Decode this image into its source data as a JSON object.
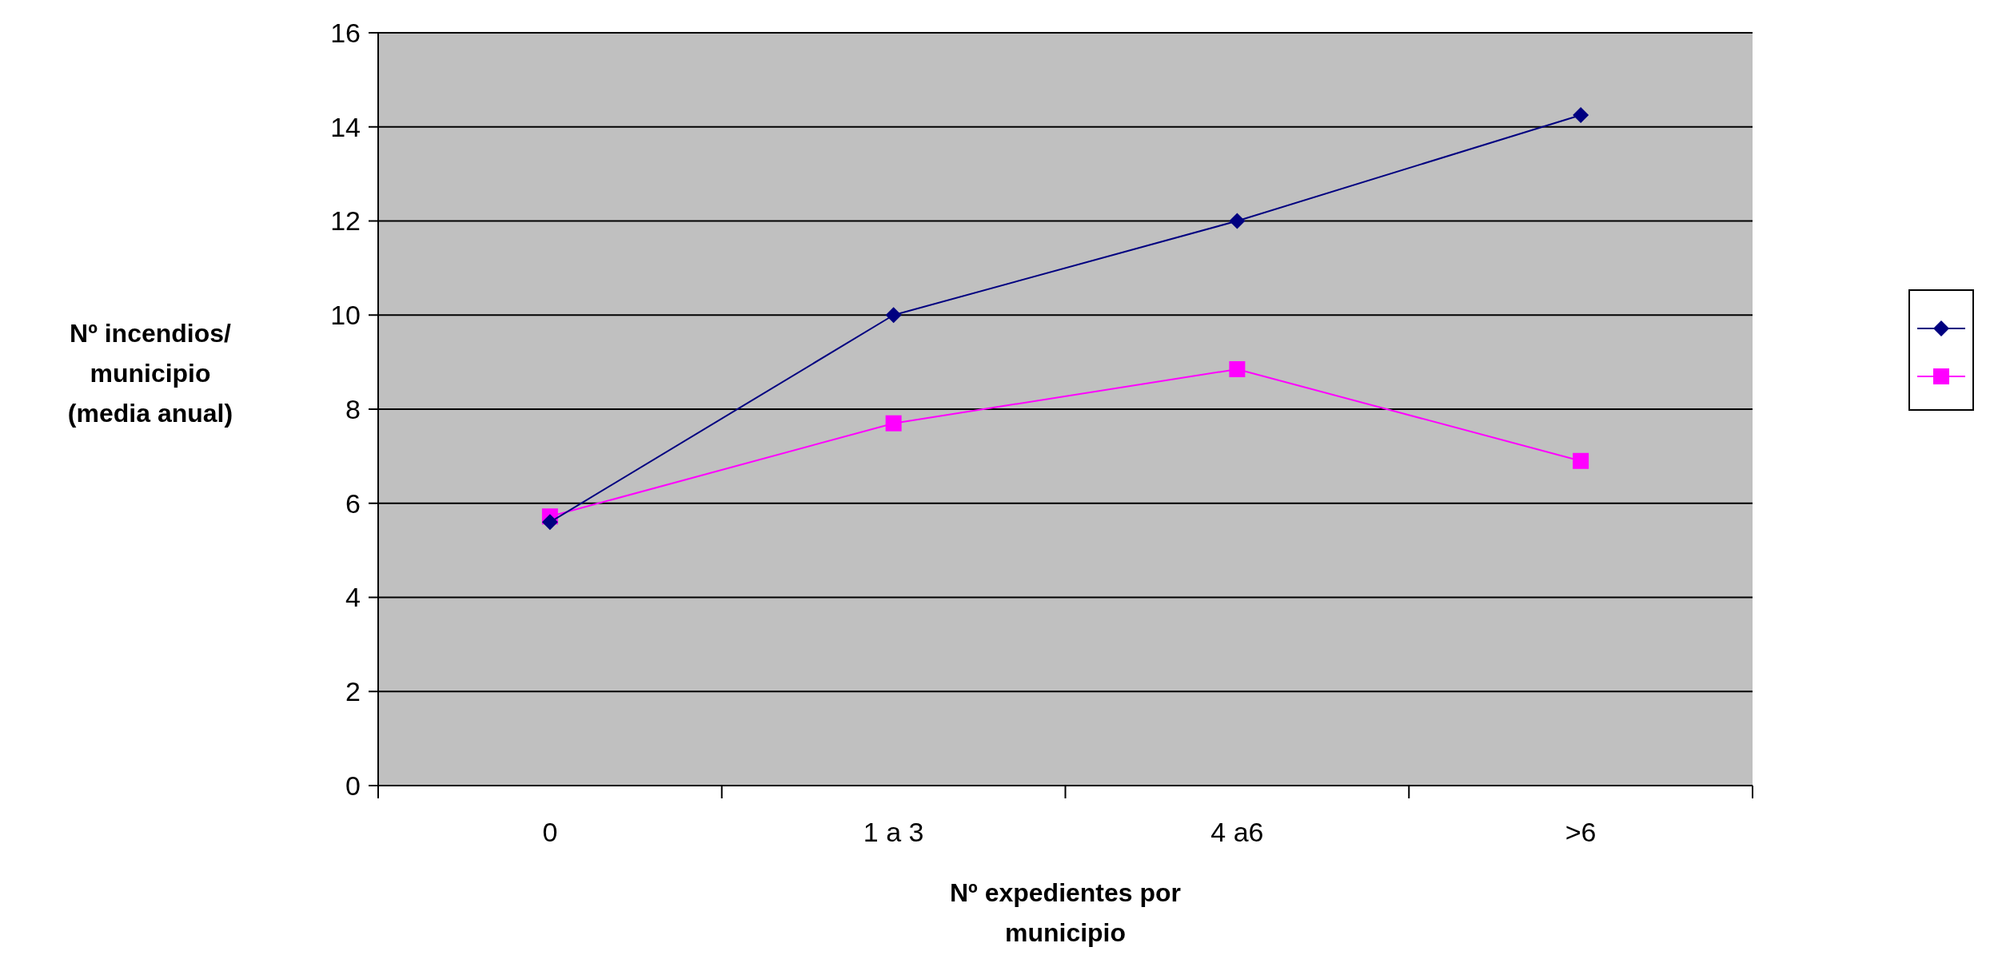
{
  "chart_data": {
    "type": "line",
    "xlabel": "Nº expedientes por\nmunicipio",
    "ylabel": "Nº incendios/\nmunicipio\n(media anual)",
    "categories": [
      "0",
      "1 a 3",
      "4 a6",
      ">6"
    ],
    "series": [
      {
        "color": "#000080",
        "marker": "diamond",
        "values": [
          5.6,
          10.0,
          12.0,
          14.25
        ]
      },
      {
        "color": "#ff00ff",
        "marker": "square",
        "values": [
          5.72,
          7.7,
          8.85,
          6.9
        ]
      }
    ],
    "ylim": [
      0,
      16
    ],
    "yticks": [
      0,
      2,
      4,
      6,
      8,
      10,
      12,
      14,
      16
    ],
    "grid": "y",
    "line_style": "solid"
  }
}
